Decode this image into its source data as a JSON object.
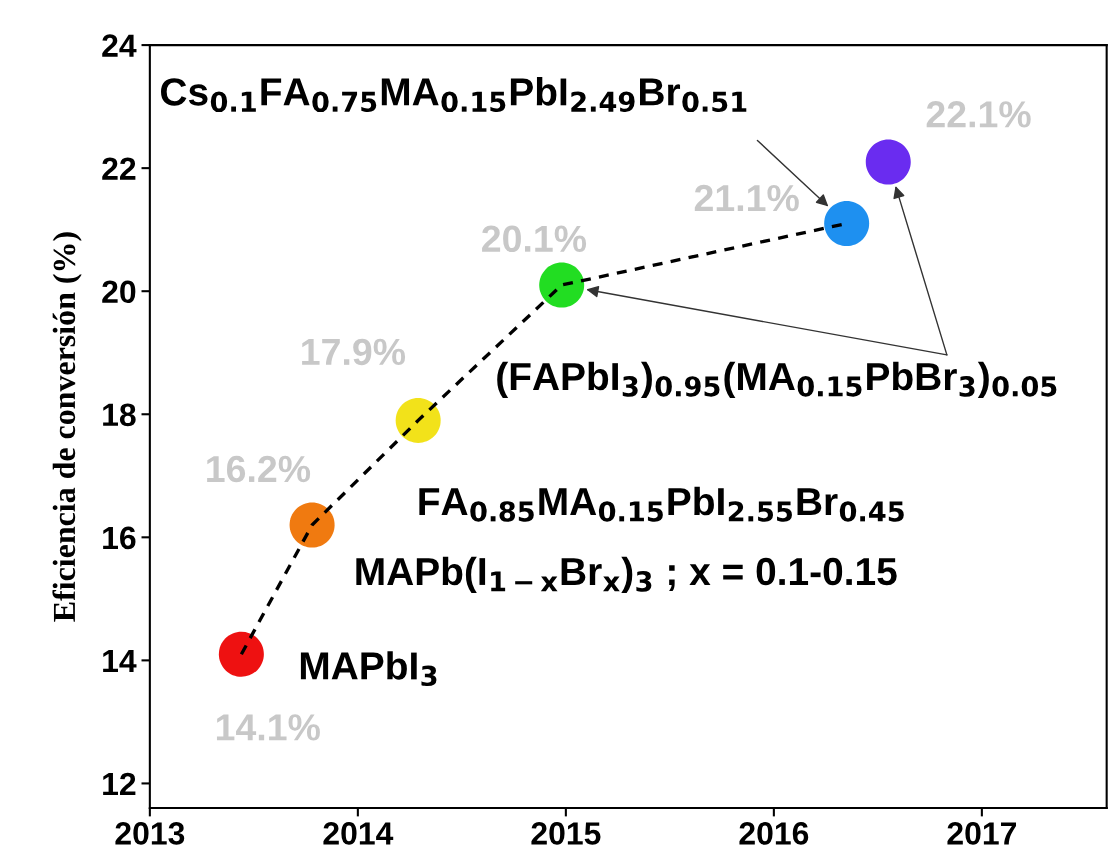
{
  "chart_data": {
    "type": "scatter",
    "ylabel": "Eficiencia de conversión (%)",
    "x": [
      2013.44,
      2013.78,
      2014.29,
      2014.98,
      2016.35,
      2016.55
    ],
    "xlim": [
      2013,
      2017.6
    ],
    "xticks": [
      2013,
      2014,
      2015,
      2016,
      2017
    ],
    "ylim": [
      11.6,
      24
    ],
    "yticks": [
      12,
      14,
      16,
      18,
      20,
      22,
      24
    ],
    "grid": false,
    "legend": false,
    "series": [
      {
        "type": "line",
        "line_style": "dashed",
        "color": "#000000",
        "x": [
          2013.44,
          2013.78,
          2014.29,
          2014.98,
          2016.35
        ],
        "values": [
          14.1,
          16.2,
          17.9,
          20.1,
          21.1
        ]
      },
      {
        "marker": "circle",
        "colors": [
          "#ee1111",
          "#f07a10",
          "#f2e21a",
          "#22dd22",
          "#1e90f0",
          "#6a2cf0"
        ],
        "values": [
          14.1,
          16.2,
          17.9,
          20.1,
          21.1,
          22.1
        ],
        "value_labels": [
          "14.1%",
          "16.2%",
          "17.9%",
          "20.1%",
          "21.1%",
          "22.1%"
        ]
      }
    ],
    "annotations": [
      "Cs$_{0.1}$FA$_{0.75}$MA$_{0.15}$PbI$_{2.49}$Br$_{0.51}$",
      "(FAPbI$_{3}$)$_{0.95}$(MA$_{0.15}$PbBr$_{3}$)$_{0.05}$",
      {
        "text": "FA$_{0.85}$MA$_{0.15}$PbI$_{2.55}$Br$_{0.45}$",
        "x": 2014.29,
        "y": 17.9
      },
      {
        "text": "MAPb(I$_{1−x}$Br$_{x}$)$_{3}$ ; x = 0.1-0.15",
        "x": 2013.78,
        "y": 16.2
      },
      {
        "text": "MAPbI$_{3}$",
        "x": 2013.44,
        "y": 14.1
      }
    ]
  }
}
